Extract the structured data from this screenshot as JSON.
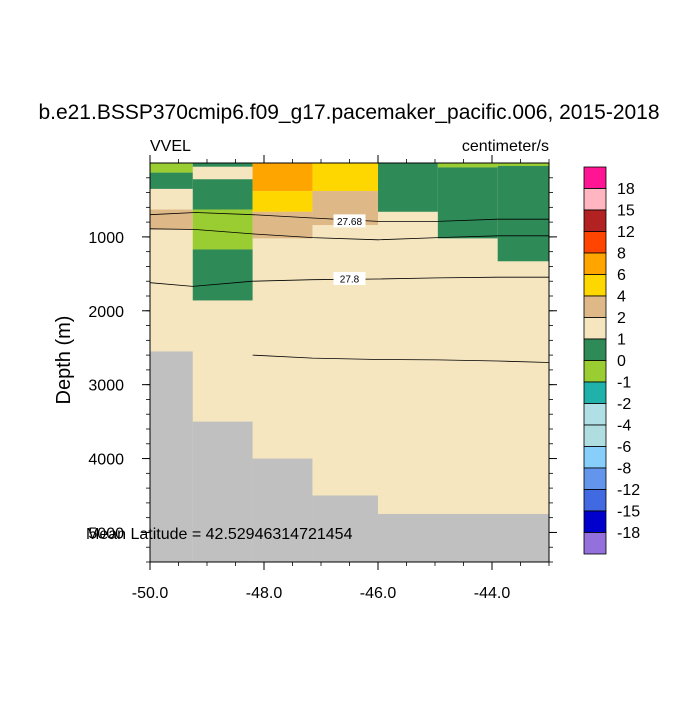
{
  "chart_data": {
    "type": "heatmap",
    "title": "b.e21.BSSP370cmip6.f09_g17.pacemaker_pacific.006, 2015-2018",
    "left_label": "VVEL",
    "right_label": "centimeter/s",
    "ylabel": "Depth (m)",
    "xlim": [
      -50.0,
      -43.0
    ],
    "ylim": [
      5400,
      0
    ],
    "x_ticks": [
      -50.0,
      -48.0,
      -46.0,
      -44.0
    ],
    "x_tick_labels": [
      "-50.0",
      "-48.0",
      "-46.0",
      "-44.0"
    ],
    "y_ticks": [
      1000,
      2000,
      3000,
      4000,
      5000
    ],
    "y_tick_labels": [
      "1000",
      "2000",
      "3000",
      "4000",
      "5000"
    ],
    "annotation": "Mean Latitude = 42.52946314721454",
    "colorbar": {
      "labels": [
        "18",
        "15",
        "12",
        "8",
        "6",
        "4",
        "2",
        "1",
        "0",
        "-1",
        "-2",
        "-4",
        "-6",
        "-8",
        "-12",
        "-15",
        "-18"
      ],
      "colors": [
        "#ff1493",
        "#ffb6c1",
        "#b22222",
        "#ff4500",
        "#ffa500",
        "#ffd700",
        "#deb887",
        "#f5e6c0",
        "#2e8b57",
        "#9acd32",
        "#20b2aa",
        "#b0e0e6",
        "#b0dde0",
        "#87cefa",
        "#6495ed",
        "#4169e1",
        "#0000cd",
        "#9370db"
      ]
    },
    "background_color": "#f5e6c0",
    "land_color": "#c0c0c0",
    "columns_x": [
      -50.0,
      -49.25,
      -48.2,
      -47.15,
      -46.0,
      -44.95,
      -43.9,
      -43.0
    ],
    "cells": [
      {
        "x": [
          -50.0,
          -49.25
        ],
        "y": [
          0,
          130
        ],
        "color": "#9acd32"
      },
      {
        "x": [
          -50.0,
          -49.25
        ],
        "y": [
          130,
          350
        ],
        "color": "#2e8b57"
      },
      {
        "x": [
          -50.0,
          -49.25
        ],
        "y": [
          630,
          900
        ],
        "color": "#deb887"
      },
      {
        "x": [
          -49.25,
          -48.2
        ],
        "y": [
          0,
          50
        ],
        "color": "#2e8b57"
      },
      {
        "x": [
          -49.25,
          -48.2
        ],
        "y": [
          220,
          630
        ],
        "color": "#2e8b57"
      },
      {
        "x": [
          -49.25,
          -48.2
        ],
        "y": [
          630,
          1170
        ],
        "color": "#9acd32"
      },
      {
        "x": [
          -49.25,
          -48.2
        ],
        "y": [
          1170,
          1860
        ],
        "color": "#2e8b57"
      },
      {
        "x": [
          -48.2,
          -47.15
        ],
        "y": [
          0,
          380
        ],
        "color": "#ffa500"
      },
      {
        "x": [
          -48.2,
          -47.15
        ],
        "y": [
          380,
          660
        ],
        "color": "#ffd700"
      },
      {
        "x": [
          -48.2,
          -47.15
        ],
        "y": [
          660,
          1020
        ],
        "color": "#deb887"
      },
      {
        "x": [
          -47.15,
          -46.0
        ],
        "y": [
          0,
          380
        ],
        "color": "#ffd700"
      },
      {
        "x": [
          -47.15,
          -46.0
        ],
        "y": [
          380,
          840
        ],
        "color": "#deb887"
      },
      {
        "x": [
          -46.0,
          -44.95
        ],
        "y": [
          0,
          660
        ],
        "color": "#2e8b57"
      },
      {
        "x": [
          -44.95,
          -43.9
        ],
        "y": [
          0,
          60
        ],
        "color": "#9acd32"
      },
      {
        "x": [
          -44.95,
          -43.9
        ],
        "y": [
          60,
          1020
        ],
        "color": "#2e8b57"
      },
      {
        "x": [
          -43.9,
          -43.0
        ],
        "y": [
          0,
          40
        ],
        "color": "#9acd32"
      },
      {
        "x": [
          -43.9,
          -43.0
        ],
        "y": [
          40,
          1330
        ],
        "color": "#2e8b57"
      }
    ],
    "land_cells": [
      {
        "x": [
          -50.0,
          -49.25
        ],
        "y": [
          2550,
          5400
        ]
      },
      {
        "x": [
          -49.25,
          -48.2
        ],
        "y": [
          3500,
          5400
        ]
      },
      {
        "x": [
          -48.2,
          -47.15
        ],
        "y": [
          4000,
          5400
        ]
      },
      {
        "x": [
          -47.15,
          -46.0
        ],
        "y": [
          4500,
          5400
        ]
      },
      {
        "x": [
          -46.0,
          -43.0
        ],
        "y": [
          4750,
          5400
        ]
      }
    ],
    "contours": [
      {
        "label": "27.68",
        "label_at": [
          -46.5,
          790
        ],
        "points": [
          [
            -50.0,
            700
          ],
          [
            -49.2,
            670
          ],
          [
            -48.2,
            700
          ],
          [
            -47.15,
            745
          ],
          [
            -46.0,
            790
          ],
          [
            -44.95,
            790
          ],
          [
            -43.9,
            760
          ],
          [
            -43.0,
            760
          ]
        ]
      },
      {
        "label": "",
        "label_at": null,
        "points": [
          [
            -50.0,
            890
          ],
          [
            -49.2,
            900
          ],
          [
            -48.2,
            960
          ],
          [
            -47.15,
            1010
          ],
          [
            -46.0,
            1040
          ],
          [
            -44.95,
            1010
          ],
          [
            -43.9,
            985
          ],
          [
            -43.0,
            985
          ]
        ]
      },
      {
        "label": "27.8",
        "label_at": [
          -46.5,
          1570
        ],
        "points": [
          [
            -50.0,
            1620
          ],
          [
            -49.25,
            1670
          ],
          [
            -48.2,
            1600
          ],
          [
            -47.15,
            1580
          ],
          [
            -46.0,
            1570
          ],
          [
            -44.95,
            1555
          ],
          [
            -43.9,
            1545
          ],
          [
            -43.0,
            1545
          ]
        ]
      },
      {
        "label": "",
        "label_at": null,
        "points": [
          [
            -48.2,
            2600
          ],
          [
            -47.15,
            2640
          ],
          [
            -46.0,
            2660
          ],
          [
            -44.95,
            2665
          ],
          [
            -43.9,
            2680
          ],
          [
            -43.0,
            2700
          ]
        ]
      }
    ]
  }
}
